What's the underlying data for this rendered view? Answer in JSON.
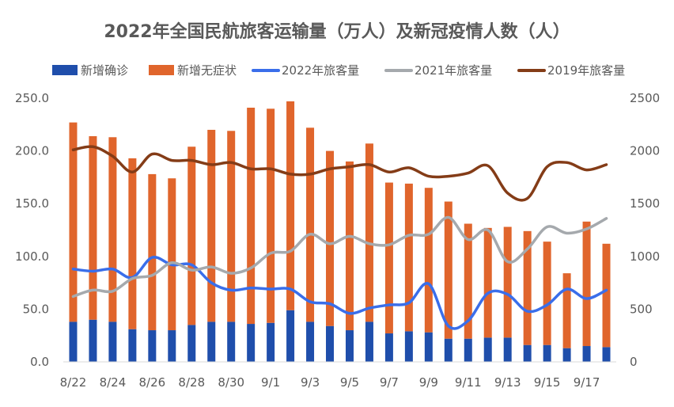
{
  "chart_data": {
    "type": "bar+line",
    "title": "2022年全国民航旅客运输量（万人）及新冠疫情人数（人）",
    "categories": [
      "8/22",
      "8/23",
      "8/24",
      "8/25",
      "8/26",
      "8/27",
      "8/28",
      "8/29",
      "8/30",
      "8/31",
      "9/1",
      "9/2",
      "9/3",
      "9/4",
      "9/5",
      "9/6",
      "9/7",
      "9/8",
      "9/9",
      "9/10",
      "9/11",
      "9/12",
      "9/13",
      "9/14",
      "9/15",
      "9/16",
      "9/17",
      "9/18"
    ],
    "x_tick_labels": [
      "8/22",
      "",
      "8/24",
      "",
      "8/26",
      "",
      "8/28",
      "",
      "8/30",
      "",
      "9/1",
      "",
      "9/3",
      "",
      "9/5",
      "",
      "9/7",
      "",
      "9/9",
      "",
      "9/11",
      "",
      "9/13",
      "",
      "9/15",
      "",
      "9/17",
      ""
    ],
    "left_axis": {
      "min": 0,
      "max": 250,
      "ticks": [
        "0.0",
        "50.0",
        "100.0",
        "150.0",
        "200.0",
        "250.0"
      ]
    },
    "right_axis": {
      "min": 0,
      "max": 2500,
      "ticks": [
        "0",
        "500",
        "1000",
        "1500",
        "2000",
        "2500"
      ]
    },
    "legend_position": "top",
    "bar_series": [
      {
        "name": "新增确诊",
        "color": "#1f4eab",
        "axis": "left",
        "values": [
          38,
          40,
          38,
          31,
          30,
          30,
          35,
          38,
          38,
          36,
          37,
          49,
          38,
          34,
          30,
          38,
          27,
          29,
          28,
          22,
          22,
          23,
          23,
          16,
          16,
          13,
          15,
          14
        ]
      },
      {
        "name": "新增无症状",
        "color": "#e0652c",
        "axis": "left",
        "values": [
          189,
          174,
          175,
          162,
          148,
          144,
          169,
          182,
          181,
          205,
          203,
          198,
          184,
          166,
          160,
          169,
          143,
          140,
          137,
          130,
          109,
          104,
          105,
          108,
          98,
          71,
          118,
          98
        ]
      }
    ],
    "line_series": [
      {
        "name": "2022年旅客量",
        "color": "#3a6eea",
        "axis": "right",
        "values": [
          880,
          860,
          880,
          800,
          990,
          920,
          920,
          750,
          680,
          700,
          690,
          690,
          570,
          550,
          460,
          510,
          540,
          560,
          740,
          340,
          390,
          650,
          640,
          480,
          540,
          690,
          600,
          680
        ]
      },
      {
        "name": "2021年旅客量",
        "color": "#a5a9ad",
        "axis": "right",
        "values": [
          620,
          680,
          670,
          790,
          820,
          940,
          870,
          900,
          840,
          890,
          1030,
          1050,
          1210,
          1120,
          1190,
          1120,
          1110,
          1200,
          1210,
          1370,
          1160,
          1250,
          950,
          1070,
          1280,
          1220,
          1260,
          1360
        ]
      },
      {
        "name": "2019年旅客量",
        "color": "#843c17",
        "axis": "right",
        "values": [
          2010,
          2040,
          1950,
          1800,
          1970,
          1910,
          1910,
          1870,
          1890,
          1830,
          1830,
          1780,
          1780,
          1830,
          1850,
          1870,
          1800,
          1840,
          1760,
          1760,
          1790,
          1860,
          1600,
          1550,
          1850,
          1890,
          1820,
          1870
        ]
      }
    ]
  }
}
